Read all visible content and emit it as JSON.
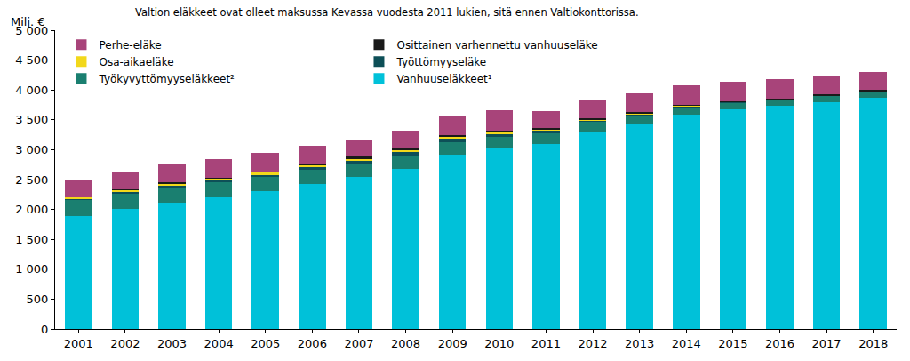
{
  "chart_data": {
    "type": "bar",
    "title": "Valtion eläkkeet ovat olleet maksussa Kevassa vuodesta 2011 lukien, sitä ennen Valtiokonttorissa.",
    "y_label": "Milj. €",
    "categories": [
      "2001",
      "2002",
      "2003",
      "2004",
      "2005",
      "2006",
      "2007",
      "2008",
      "2009",
      "2010",
      "2011",
      "2012",
      "2013",
      "2014",
      "2015",
      "2016",
      "2017",
      "2018"
    ],
    "series": [
      {
        "name": "Vanhuuseläkkeet¹",
        "color": "#00C1D9",
        "values": [
          1890,
          2010,
          2110,
          2200,
          2300,
          2430,
          2540,
          2680,
          2910,
          3020,
          3100,
          3300,
          3430,
          3580,
          3670,
          3730,
          3800,
          3870
        ]
      },
      {
        "name": "Työkyvyttömyyseläkkeet²",
        "color": "#1A7F70",
        "values": [
          270,
          260,
          260,
          250,
          240,
          230,
          220,
          220,
          210,
          200,
          180,
          160,
          150,
          140,
          120,
          110,
          100,
          95
        ]
      },
      {
        "name": "Työttömyyseläke",
        "color": "#0D4F57",
        "values": [
          20,
          25,
          30,
          35,
          40,
          50,
          60,
          60,
          60,
          50,
          40,
          30,
          20,
          10,
          5,
          3,
          2,
          1
        ]
      },
      {
        "name": "Osa-aikaeläke",
        "color": "#F2D81B",
        "values": [
          30,
          35,
          40,
          40,
          40,
          35,
          35,
          35,
          30,
          25,
          22,
          20,
          15,
          12,
          10,
          8,
          5,
          3
        ]
      },
      {
        "name": "Osittainen varhennettu vanhuuseläke",
        "color": "#1A1A1A",
        "values": [
          5,
          5,
          10,
          10,
          15,
          20,
          25,
          30,
          30,
          30,
          25,
          20,
          20,
          15,
          10,
          10,
          20,
          30
        ]
      },
      {
        "name": "Perhe-eläke",
        "color": "#A8447A",
        "values": [
          285,
          295,
          300,
          305,
          305,
          305,
          290,
          295,
          310,
          335,
          283,
          300,
          305,
          323,
          325,
          319,
          313,
          301
        ]
      }
    ],
    "stacked": true,
    "ylim": [
      0,
      5000
    ],
    "yticks": [
      0,
      500,
      {
        "value": 1000,
        "label": "1 000"
      },
      {
        "value": 1500,
        "label": "1 500"
      },
      {
        "value": 2000,
        "label": "2 000"
      },
      {
        "value": 2500,
        "label": "2 500"
      },
      {
        "value": 3000,
        "label": "3 000"
      },
      {
        "value": 3500,
        "label": "3 500"
      },
      {
        "value": 4000,
        "label": "4 000"
      },
      {
        "value": 4500,
        "label": "4 500"
      },
      {
        "value": 5000,
        "label": "5 000"
      }
    ],
    "grid": false,
    "legend": "top left"
  }
}
